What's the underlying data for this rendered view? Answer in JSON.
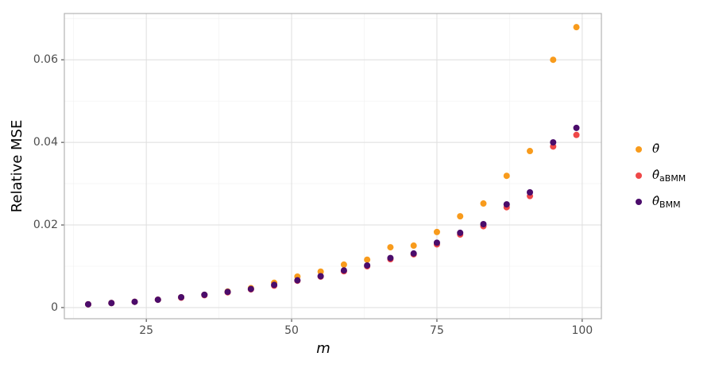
{
  "chart_data": {
    "type": "scatter",
    "x_label": "m",
    "y_label": "Relative MSE",
    "x": [
      15,
      19,
      23,
      27,
      31,
      35,
      39,
      43,
      47,
      51,
      55,
      59,
      63,
      67,
      71,
      75,
      79,
      83,
      87,
      91,
      95,
      99
    ],
    "series": [
      {
        "name": "θ̄",
        "color": "#f89b1c",
        "values": [
          0.0008,
          0.0011,
          0.0014,
          0.0019,
          0.0025,
          0.0031,
          0.0039,
          0.0047,
          0.006,
          0.0075,
          0.0087,
          0.0104,
          0.0116,
          0.0146,
          0.015,
          0.0183,
          0.0221,
          0.0252,
          0.0319,
          0.0379,
          0.06,
          0.0679
        ]
      },
      {
        "name": "θ̂aBMM",
        "color": "#ef4848",
        "values": [
          0.0008,
          0.0011,
          0.0014,
          0.0019,
          0.0024,
          0.003,
          0.0037,
          0.0044,
          0.0053,
          0.0065,
          0.0075,
          0.0088,
          0.01,
          0.0117,
          0.0129,
          0.0153,
          0.0177,
          0.0197,
          0.0243,
          0.027,
          0.039,
          0.0418
        ]
      },
      {
        "name": "θ̂BMM",
        "color": "#4b0c6b",
        "values": [
          0.0008,
          0.0011,
          0.0014,
          0.0019,
          0.0025,
          0.0031,
          0.0038,
          0.0045,
          0.0055,
          0.0066,
          0.0076,
          0.009,
          0.0102,
          0.012,
          0.0131,
          0.0157,
          0.0181,
          0.0202,
          0.025,
          0.0279,
          0.04,
          0.0435
        ]
      }
    ],
    "xlim": [
      10.9,
      103.3
    ],
    "ylim": [
      -0.0027,
      0.0712
    ],
    "xticks": [
      25,
      50,
      75,
      100
    ],
    "yticks": [
      0,
      0.02,
      0.04,
      0.06
    ],
    "grid": true,
    "legend": "right"
  }
}
